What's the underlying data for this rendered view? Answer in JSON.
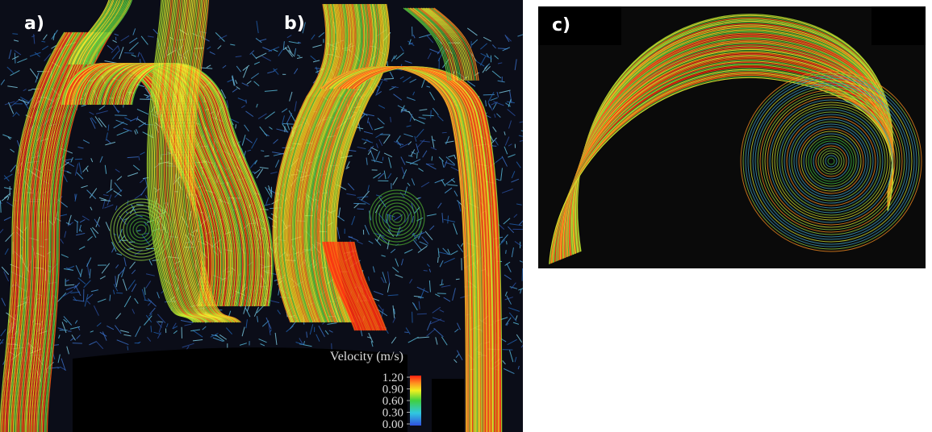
{
  "panels": [
    {
      "label": "a)"
    },
    {
      "label": "b)"
    },
    {
      "label": "c)"
    }
  ],
  "colorbar": {
    "title": "Velocity (m/s)",
    "lim": [
      0,
      1.2
    ],
    "ticks": [
      {
        "value": 1.2,
        "label": "1.20"
      },
      {
        "value": 0.9,
        "label": "0.90"
      },
      {
        "value": 0.6,
        "label": "0.60"
      },
      {
        "value": 0.3,
        "label": "0.30"
      },
      {
        "value": 0,
        "label": "0.00"
      }
    ]
  }
}
